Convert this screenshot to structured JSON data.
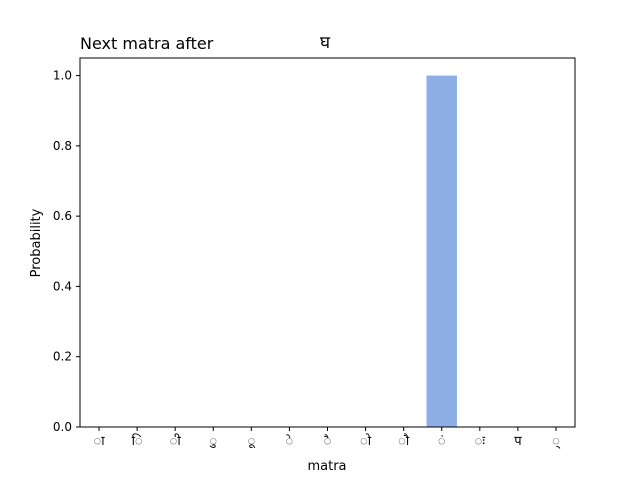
{
  "chart_data": {
    "type": "bar",
    "title": "Next matra after",
    "title_glyph": "घ",
    "xlabel": "matra",
    "ylabel": "Probability",
    "categories": [
      "ा",
      "ि",
      "ी",
      "ु",
      "ू",
      "े",
      "ै",
      "ो",
      "ौ",
      "ं",
      "ः",
      "प",
      "्"
    ],
    "values": [
      0,
      0,
      0,
      0,
      0,
      0,
      0,
      0,
      0,
      1.0,
      0,
      0,
      0
    ],
    "ylim": [
      0,
      1.05
    ],
    "yticks": [
      "0.0",
      "0.2",
      "0.4",
      "0.6",
      "0.8",
      "1.0"
    ],
    "grid": false,
    "bar_color": "#8eaee8"
  }
}
